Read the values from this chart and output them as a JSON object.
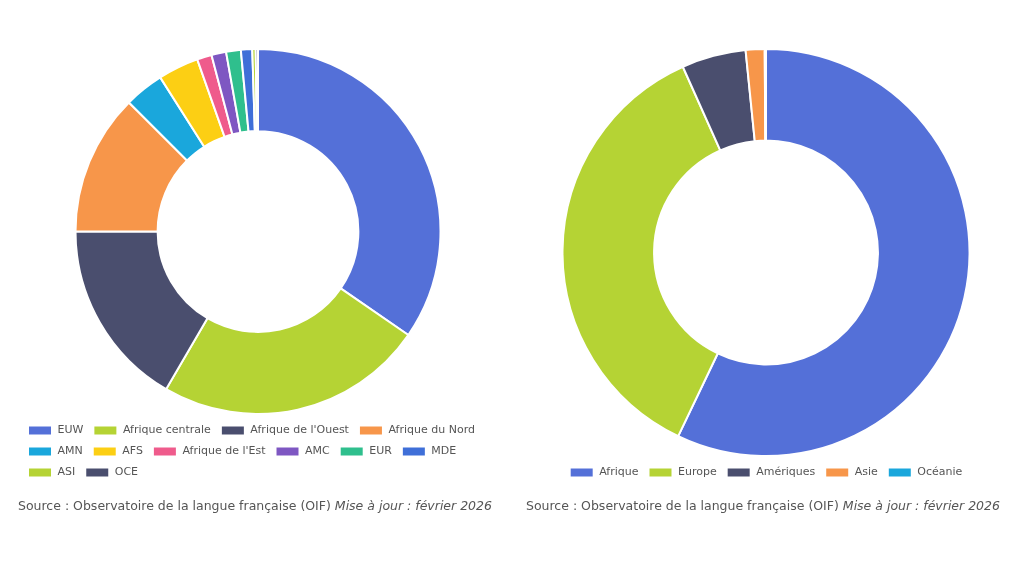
{
  "chart_data": [
    {
      "type": "donut",
      "categories": [
        "EUW",
        "Afrique centrale",
        "Afrique de l'Ouest",
        "Afrique du Nord",
        "AMN",
        "AFS",
        "Afrique de l'Est",
        "AMC",
        "EUR",
        "MDE",
        "ASI",
        "OCE"
      ],
      "values": [
        34.6,
        23.8,
        16.6,
        12.5,
        3.5,
        3.6,
        1.3,
        1.3,
        1.3,
        1.0,
        0.3,
        0.2
      ],
      "colors": [
        "#5470d8",
        "#b5d334",
        "#4a4e6e",
        "#f7964a",
        "#1aa7dc",
        "#fccf14",
        "#ef5b8c",
        "#7e57c2",
        "#2fbf8d",
        "#3f6fd8",
        "#b5d334",
        "#4a4e6e"
      ],
      "legend": "bottom",
      "annotations": [
        "Source : Observatoire de la langue française (OIF)",
        "Mise à jour : février 2026"
      ]
    },
    {
      "type": "donut",
      "categories": [
        "Afrique",
        "Europe",
        "Amériques",
        "Asie",
        "Océanie"
      ],
      "values": [
        57.1,
        36.2,
        5.1,
        1.5,
        0.1
      ],
      "colors": [
        "#5470d8",
        "#b5d334",
        "#4a4e6e",
        "#f7964a",
        "#1aa7dc"
      ],
      "legend": "bottom",
      "annotations": [
        "Source : Observatoire de la langue française (OIF)",
        "Mise à jour : février 2026"
      ]
    }
  ]
}
